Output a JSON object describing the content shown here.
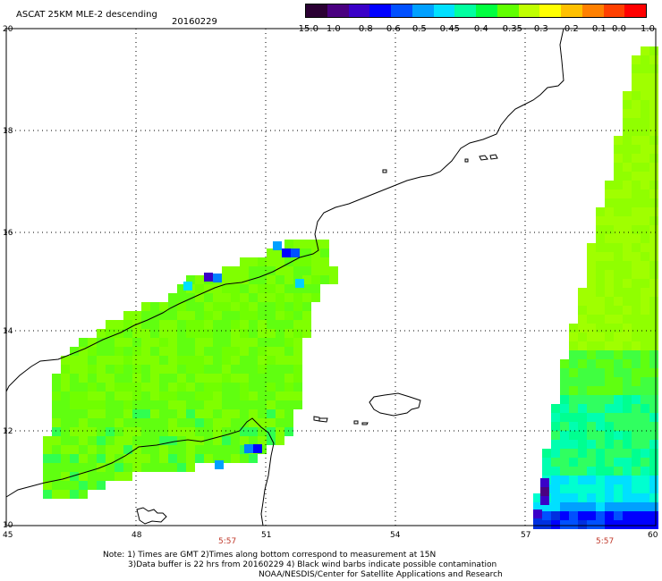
{
  "header": {
    "title": "ASCAT 25KM MLE-2 descending",
    "date": "20160229"
  },
  "colorbar": {
    "labels": [
      "-15.0",
      "-1.0",
      "-0.8",
      "-0.6",
      "-0.5",
      "-0.45",
      "-0.4",
      "-0.35",
      "-0.3",
      "-0.2",
      "-0.1",
      "0.0",
      "1.0"
    ],
    "colors": [
      "#2b0033",
      "#4a0080",
      "#3a00c8",
      "#0000ff",
      "#0050ff",
      "#00a0ff",
      "#00e0ff",
      "#00ffa0",
      "#00ff40",
      "#60ff00",
      "#c0ff00",
      "#ffff00",
      "#ffc000",
      "#ff8000",
      "#ff4000",
      "#ff0000"
    ]
  },
  "axes": {
    "lat_labels": [
      "20",
      "18",
      "16",
      "14",
      "12",
      "10"
    ],
    "lon_labels": [
      "45",
      "48",
      "51",
      "54",
      "57",
      "60"
    ],
    "time_labels": [
      "5:57",
      "5:57"
    ]
  },
  "notes": [
    "Note: 1) Times are GMT 2)Times along bottom correspond to measurement at 15N",
    "3)Data buffer is 22 hrs from 20160229 4) Black wind barbs indicate possible contamination",
    "NOAA/NESDIS/Center for Satellite Applications and Research"
  ]
}
